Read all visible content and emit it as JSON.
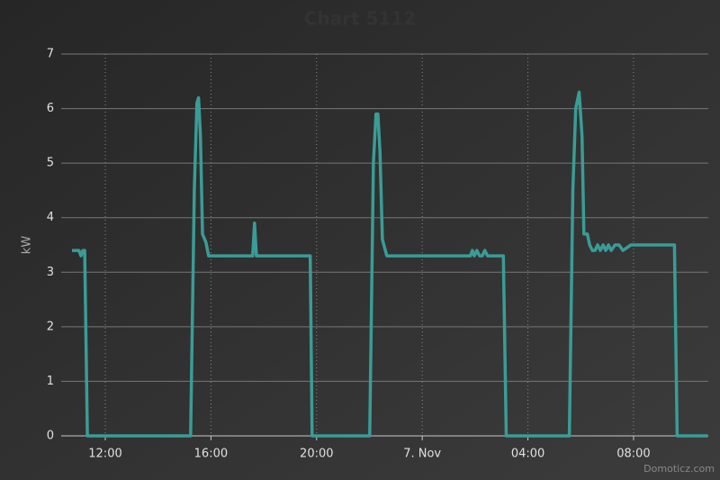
{
  "chart_data": {
    "type": "line",
    "title": "Chart 5112",
    "y_label": "kW",
    "watermark": "Domoticz.com",
    "x": [
      10.74,
      11.0,
      11.08,
      11.15,
      11.22,
      11.32,
      15.23,
      15.37,
      15.47,
      15.53,
      15.6,
      15.68,
      15.81,
      15.91,
      17.58,
      17.65,
      17.72,
      19.76,
      19.83,
      22.01,
      22.15,
      22.25,
      22.32,
      22.4,
      22.49,
      22.66,
      25.82,
      25.9,
      25.97,
      26.07,
      26.17,
      26.27,
      26.37,
      26.47,
      27.07,
      27.18,
      29.57,
      29.7,
      29.81,
      29.94,
      30.05,
      30.12,
      30.25,
      30.34,
      30.44,
      30.54,
      30.64,
      30.74,
      30.85,
      30.95,
      31.05,
      31.15,
      31.3,
      31.45,
      31.6,
      31.9,
      32.0,
      33.55,
      33.65,
      34.81
    ],
    "series": [
      {
        "name": "kW",
        "color": "#3a9c96",
        "values": [
          3.4,
          3.4,
          3.3,
          3.4,
          3.4,
          0,
          0,
          4.5,
          6.1,
          6.2,
          5.5,
          3.7,
          3.55,
          3.3,
          3.3,
          3.9,
          3.3,
          3.3,
          0,
          0,
          5.0,
          5.9,
          5.9,
          5.2,
          3.6,
          3.3,
          3.3,
          3.4,
          3.3,
          3.4,
          3.3,
          3.3,
          3.4,
          3.3,
          3.3,
          0,
          0,
          4.5,
          6.0,
          6.3,
          5.5,
          3.7,
          3.7,
          3.5,
          3.4,
          3.4,
          3.5,
          3.4,
          3.5,
          3.4,
          3.5,
          3.4,
          3.5,
          3.5,
          3.4,
          3.5,
          3.5,
          3.5,
          0,
          0
        ]
      }
    ],
    "xlim": [
      10.33,
      34.83
    ],
    "xticks": [
      {
        "value": 12,
        "label": "12:00"
      },
      {
        "value": 16,
        "label": "16:00"
      },
      {
        "value": 20,
        "label": "20:00"
      },
      {
        "value": 24,
        "label": "7. Nov"
      },
      {
        "value": 28,
        "label": "04:00"
      },
      {
        "value": 32,
        "label": "08:00"
      }
    ],
    "ylim": [
      0,
      7
    ],
    "yticks": [
      0,
      1,
      2,
      3,
      4,
      5,
      6,
      7
    ],
    "grid": true
  }
}
